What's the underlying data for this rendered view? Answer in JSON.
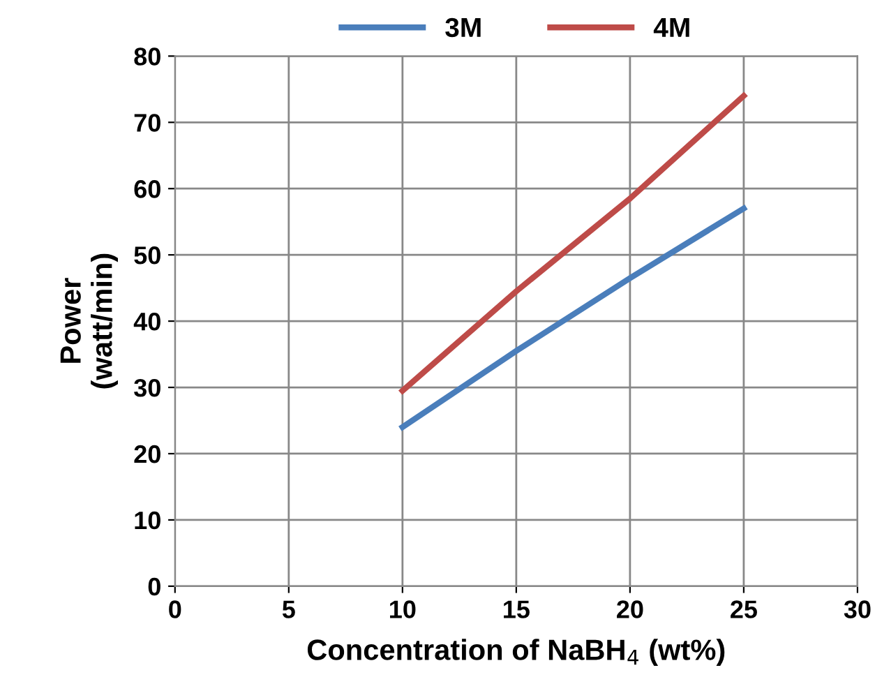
{
  "chart_data": {
    "type": "line",
    "xlabel": "Concentration of NaBH$_{4}$ (wt%)",
    "ylabel": "Power\n(watt/min)",
    "x": [
      10,
      15,
      20,
      25
    ],
    "series": [
      {
        "name": "3M",
        "color": "#4a7ebb",
        "values": [
          24,
          35.5,
          46.5,
          57
        ]
      },
      {
        "name": "4M",
        "color": "#be4b48",
        "values": [
          29.5,
          44.5,
          58.5,
          74
        ]
      }
    ],
    "xlim": [
      0,
      30
    ],
    "xticks": [
      0,
      5,
      10,
      15,
      20,
      25,
      30
    ],
    "ylim": [
      0,
      80
    ],
    "yticks": [
      0,
      10,
      20,
      30,
      40,
      50,
      60,
      70,
      80
    ],
    "grid": true,
    "legend": "top",
    "marker": "none",
    "line_style": "solid"
  }
}
